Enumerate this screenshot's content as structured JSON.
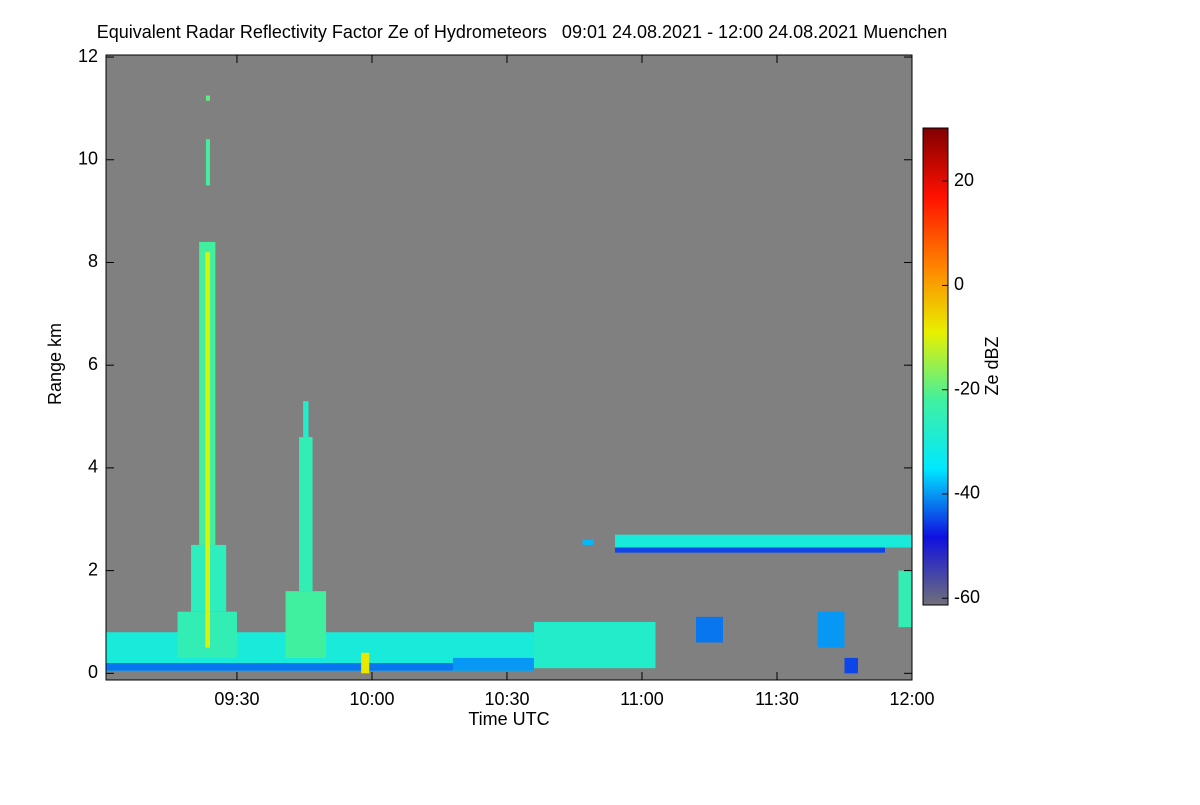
{
  "chart_data": {
    "type": "heatmap",
    "title": "Equivalent Radar Reflectivity Factor Ze of Hydrometeors   09:01 24.08.2021 - 12:00 24.08.2021 Muenchen",
    "x_label": "Time UTC",
    "y_label": "Range km",
    "colorbar_label": "Ze dBZ",
    "background_color": "#808080",
    "colormap": [
      "#70707a",
      "#1010e0",
      "#00e8ff",
      "#40f0a0",
      "#e8f000",
      "#ff8000",
      "#ff1000",
      "#800000"
    ],
    "xlim": [
      9.015,
      12.0
    ],
    "xticks": [
      {
        "value": 9.5,
        "label": "09:30"
      },
      {
        "value": 10,
        "label": "10:00"
      },
      {
        "value": 10.5,
        "label": "10:30"
      },
      {
        "value": 11,
        "label": "11:00"
      },
      {
        "value": 11.5,
        "label": "11:30"
      },
      {
        "value": 12,
        "label": "12:00"
      }
    ],
    "ylim": [
      -0.13,
      12.04
    ],
    "yticks": [
      0,
      2,
      4,
      6,
      8,
      10,
      12
    ],
    "clim": [
      -61.3,
      30.2
    ],
    "cticks": [
      20,
      0,
      -20,
      -40,
      -60
    ],
    "cells": [
      {
        "x": [
          9.015,
          10.6
        ],
        "y": [
          0.05,
          0.8
        ],
        "value": -30
      },
      {
        "x": [
          9.015,
          10.3
        ],
        "y": [
          0.05,
          0.2
        ],
        "value": -42
      },
      {
        "x": [
          10.6,
          11.05
        ],
        "y": [
          0.1,
          1.0
        ],
        "value": -28
      },
      {
        "x": [
          10.3,
          10.6
        ],
        "y": [
          0.05,
          0.3
        ],
        "value": -40
      },
      {
        "x": [
          9.28,
          9.5
        ],
        "y": [
          0.3,
          1.2
        ],
        "value": -25
      },
      {
        "x": [
          9.33,
          9.46
        ],
        "y": [
          1.2,
          2.5
        ],
        "value": -26
      },
      {
        "x": [
          9.36,
          9.42
        ],
        "y": [
          2.5,
          8.4
        ],
        "value": -22
      },
      {
        "x": [
          9.383,
          9.4
        ],
        "y": [
          0.5,
          8.2
        ],
        "value": -10
      },
      {
        "x": [
          9.385,
          9.4
        ],
        "y": [
          9.5,
          10.4
        ],
        "value": -22
      },
      {
        "x": [
          9.385,
          9.4
        ],
        "y": [
          11.15,
          11.25
        ],
        "value": -20
      },
      {
        "x": [
          9.68,
          9.83
        ],
        "y": [
          0.3,
          1.6
        ],
        "value": -22
      },
      {
        "x": [
          9.73,
          9.78
        ],
        "y": [
          1.6,
          4.6
        ],
        "value": -25
      },
      {
        "x": [
          9.745,
          9.765
        ],
        "y": [
          4.6,
          5.3
        ],
        "value": -28
      },
      {
        "x": [
          9.96,
          9.99
        ],
        "y": [
          0.0,
          0.4
        ],
        "value": -8
      },
      {
        "x": [
          10.9,
          12.0
        ],
        "y": [
          2.45,
          2.7
        ],
        "value": -30
      },
      {
        "x": [
          10.9,
          11.9
        ],
        "y": [
          2.35,
          2.45
        ],
        "value": -45
      },
      {
        "x": [
          10.78,
          10.82
        ],
        "y": [
          2.5,
          2.6
        ],
        "value": -38
      },
      {
        "x": [
          11.95,
          12.0
        ],
        "y": [
          0.9,
          2.0
        ],
        "value": -25
      },
      {
        "x": [
          11.2,
          11.3
        ],
        "y": [
          0.6,
          1.1
        ],
        "value": -42
      },
      {
        "x": [
          11.65,
          11.75
        ],
        "y": [
          0.5,
          1.2
        ],
        "value": -40
      },
      {
        "x": [
          11.75,
          11.8
        ],
        "y": [
          0.0,
          0.3
        ],
        "value": -45
      }
    ]
  }
}
